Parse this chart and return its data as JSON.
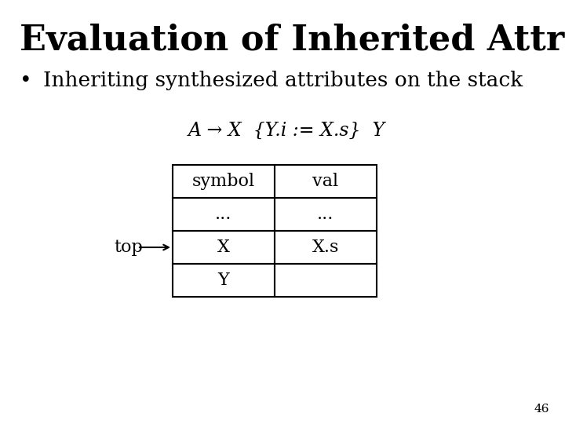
{
  "title": "Evaluation of Inherited Attributes",
  "bullet": "Inheriting synthesized attributes on the stack",
  "grammar_rule": "A → X  {Y.i := X.s}  Y",
  "table": {
    "headers": [
      "symbol",
      "val"
    ],
    "rows": [
      [
        "...",
        "..."
      ],
      [
        "X",
        "X.s"
      ],
      [
        "Y",
        ""
      ]
    ]
  },
  "top_label": "top",
  "page_number": "46",
  "bg_color": "#ffffff",
  "text_color": "#000000",
  "title_fontsize": 32,
  "bullet_fontsize": 19,
  "grammar_fontsize": 17,
  "table_fontsize": 16,
  "page_fontsize": 11
}
